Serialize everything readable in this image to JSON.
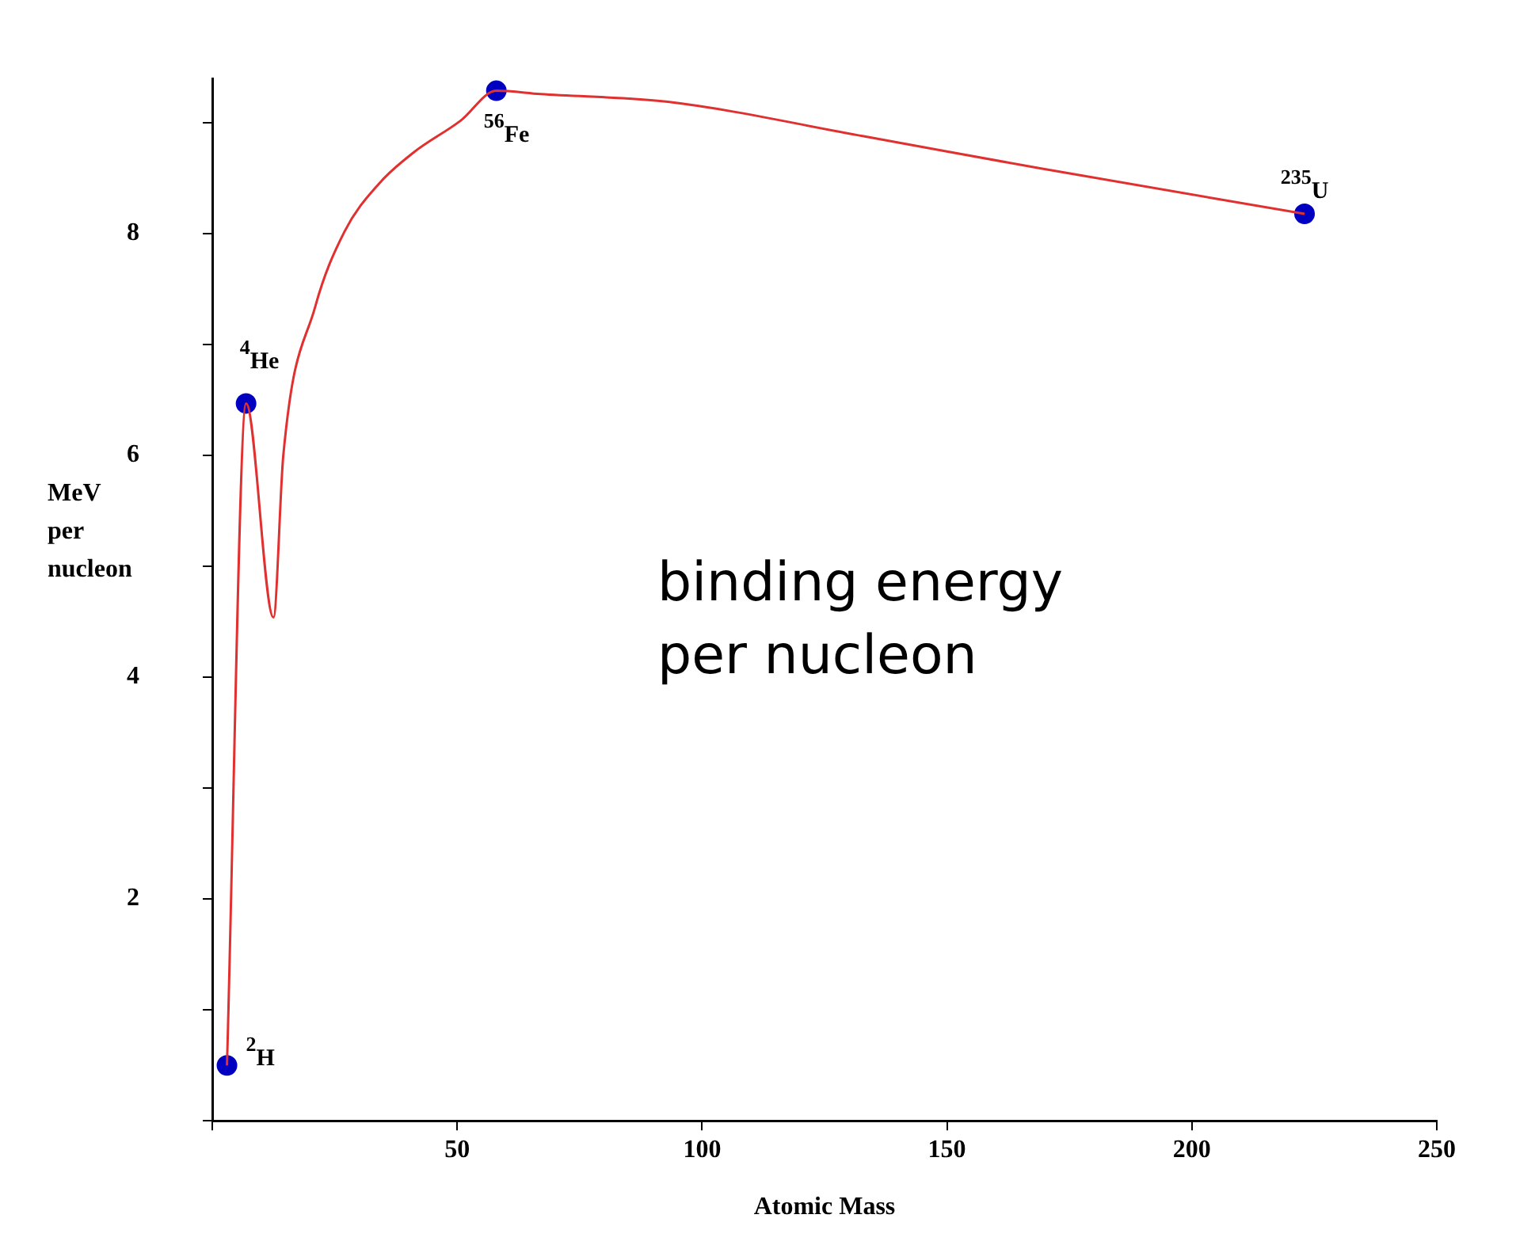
{
  "chart_data": {
    "type": "line",
    "xlabel": "Atomic Mass",
    "ylabel": "MeV per nucleon",
    "xlim": [
      0,
      250
    ],
    "xticks": [
      {
        "value": 0,
        "label": null
      },
      50,
      100,
      150,
      200,
      250
    ],
    "ylim": [
      0,
      9.4
    ],
    "yticks": [
      {
        "value": 0,
        "label": null
      },
      {
        "value": 1,
        "label": null
      },
      2,
      {
        "value": 3,
        "label": null
      },
      4,
      {
        "value": 5,
        "label": null
      },
      6,
      {
        "value": 7,
        "label": null
      },
      8,
      {
        "value": 9,
        "label": null
      }
    ],
    "grid": false,
    "legend": false,
    "series": [
      {
        "type": "line",
        "color": "#e03030",
        "marker": "none",
        "x": [
          3,
          6.9,
          12.5,
          14.5,
          21,
          27,
          34,
          41,
          50.7,
          58,
          67,
          93,
          133,
          169,
          223
        ],
        "values": [
          0.5,
          6.47,
          4.54,
          6,
          7.34,
          8.02,
          8.45,
          8.73,
          9.02,
          9.29,
          9.26,
          9.19,
          8.88,
          8.59,
          8.18
        ]
      },
      {
        "type": "scatter",
        "color": "#0000c0",
        "marker": "circle",
        "x": [
          3,
          6.9,
          58,
          223
        ],
        "values": [
          0.5,
          6.47,
          9.29,
          8.18
        ]
      }
    ],
    "annotations": [
      {
        "text": "$^{2}$H",
        "x": 3,
        "y": 0.5
      },
      {
        "text": "$^{4}$He",
        "x": 6.9,
        "y": 6.47
      },
      {
        "text": "$^{56}$Fe",
        "x": 58,
        "y": 9.29
      },
      {
        "text": "$^{235}$U",
        "x": 223,
        "y": 8.18
      },
      "binding energy\nper nucleon"
    ]
  }
}
